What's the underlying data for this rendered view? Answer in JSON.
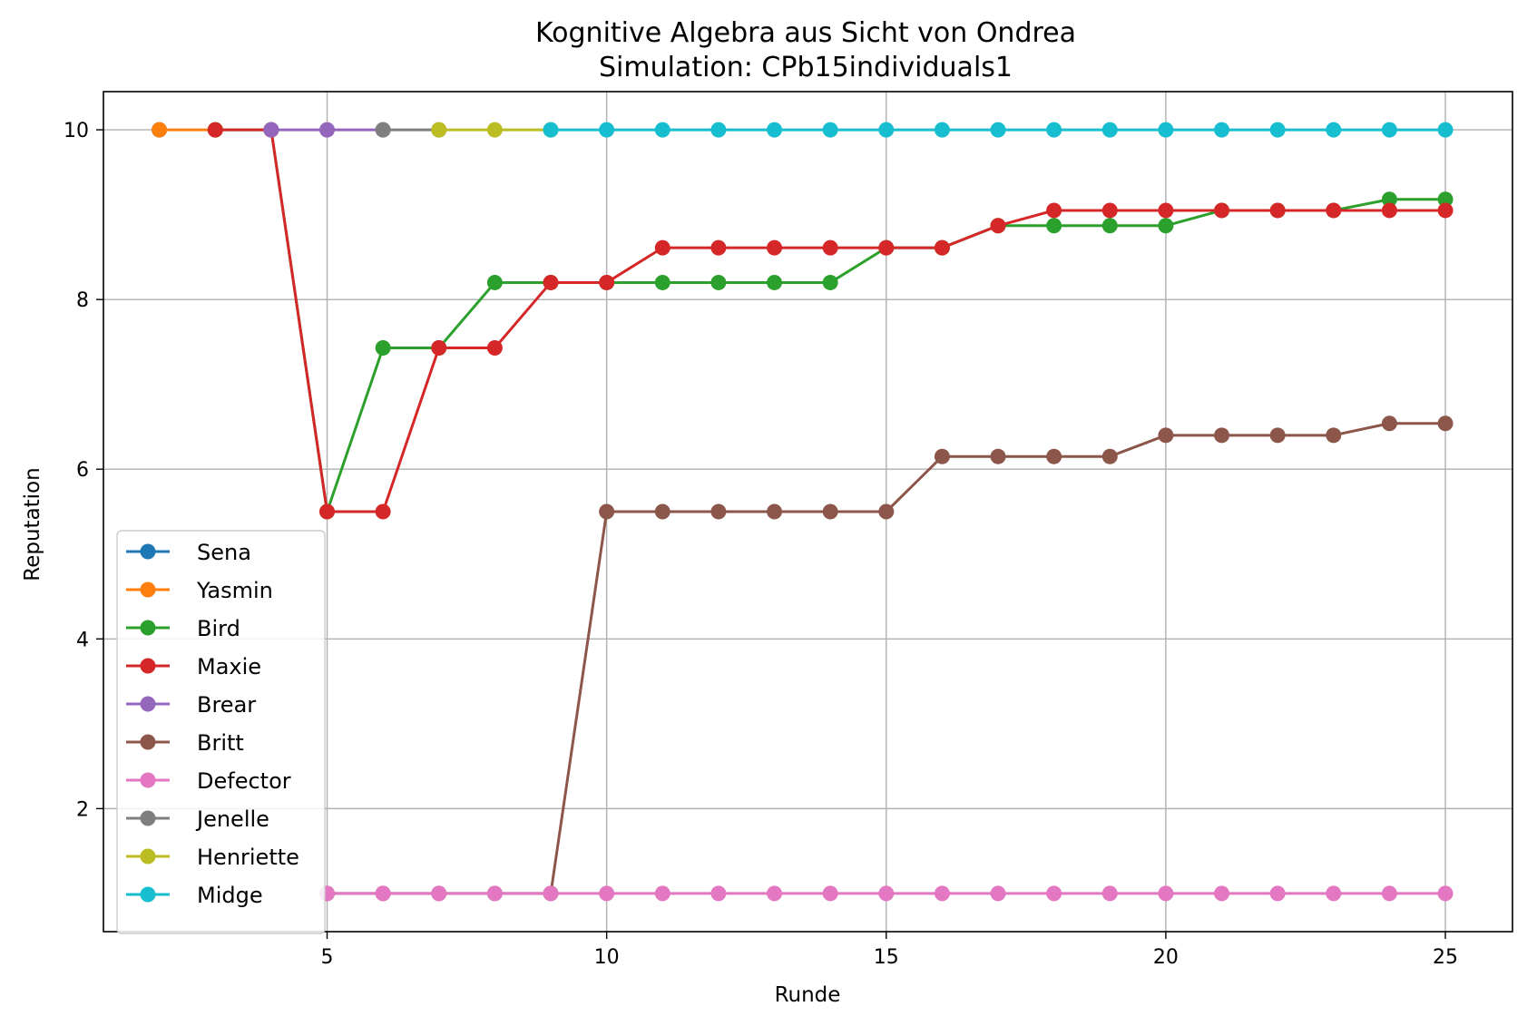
{
  "chart_data": {
    "type": "line",
    "title": "Kognitive Algebra aus Sicht von Ondrea",
    "subtitle": "Simulation: CPb15individuals1",
    "xlabel": "Runde",
    "ylabel": "Reputation",
    "xlim": [
      1.0,
      26.2
    ],
    "ylim": [
      0.55,
      10.45
    ],
    "xticks": [
      5,
      10,
      15,
      20,
      25
    ],
    "yticks": [
      2,
      4,
      6,
      8,
      10
    ],
    "grid": true,
    "legend_position": "lower-left",
    "series": [
      {
        "name": "Sena",
        "color": "#1f77b4",
        "x": [
          2
        ],
        "y": [
          10
        ]
      },
      {
        "name": "Yasmin",
        "color": "#ff7f0e",
        "x": [
          2,
          3
        ],
        "y": [
          10,
          10
        ]
      },
      {
        "name": "Bird",
        "color": "#2ca02c",
        "x": [
          3,
          4,
          5,
          6,
          7,
          8,
          9,
          10,
          11,
          12,
          13,
          14,
          15,
          16,
          17,
          18,
          19,
          20,
          21,
          22,
          23,
          24,
          25
        ],
        "y": [
          10,
          10,
          5.5,
          7.43,
          7.43,
          8.2,
          8.2,
          8.2,
          8.2,
          8.2,
          8.2,
          8.2,
          8.61,
          8.61,
          8.87,
          8.87,
          8.87,
          8.87,
          9.05,
          9.05,
          9.05,
          9.18,
          9.18
        ]
      },
      {
        "name": "Maxie",
        "color": "#d62728",
        "x": [
          3,
          4,
          5,
          6,
          7,
          8,
          9,
          10,
          11,
          12,
          13,
          14,
          15,
          16,
          17,
          18,
          19,
          20,
          21,
          22,
          23,
          24,
          25
        ],
        "y": [
          10,
          10,
          5.5,
          5.5,
          7.43,
          7.43,
          8.2,
          8.2,
          8.61,
          8.61,
          8.61,
          8.61,
          8.61,
          8.61,
          8.87,
          9.05,
          9.05,
          9.05,
          9.05,
          9.05,
          9.05,
          9.05,
          9.05
        ]
      },
      {
        "name": "Brear",
        "color": "#9467bd",
        "x": [
          4,
          5,
          6
        ],
        "y": [
          10,
          10,
          10
        ]
      },
      {
        "name": "Britt",
        "color": "#8c564b",
        "x": [
          5,
          6,
          7,
          8,
          9,
          10,
          11,
          12,
          13,
          14,
          15,
          16,
          17,
          18,
          19,
          20,
          21,
          22,
          23,
          24,
          25
        ],
        "y": [
          1,
          1,
          1,
          1,
          1,
          5.5,
          5.5,
          5.5,
          5.5,
          5.5,
          5.5,
          6.15,
          6.15,
          6.15,
          6.15,
          6.4,
          6.4,
          6.4,
          6.4,
          6.54,
          6.54
        ]
      },
      {
        "name": "Defector",
        "color": "#e377c2",
        "x": [
          5,
          6,
          7,
          8,
          9,
          10,
          11,
          12,
          13,
          14,
          15,
          16,
          17,
          18,
          19,
          20,
          21,
          22,
          23,
          24,
          25
        ],
        "y": [
          1,
          1,
          1,
          1,
          1,
          1,
          1,
          1,
          1,
          1,
          1,
          1,
          1,
          1,
          1,
          1,
          1,
          1,
          1,
          1,
          1
        ]
      },
      {
        "name": "Jenelle",
        "color": "#7f7f7f",
        "x": [
          6,
          7
        ],
        "y": [
          10,
          10
        ]
      },
      {
        "name": "Henriette",
        "color": "#bcbd22",
        "x": [
          7,
          8,
          9
        ],
        "y": [
          10,
          10,
          10
        ]
      },
      {
        "name": "Midge",
        "color": "#17becf",
        "x": [
          9,
          10,
          11,
          12,
          13,
          14,
          15,
          16,
          17,
          18,
          19,
          20,
          21,
          22,
          23,
          24,
          25
        ],
        "y": [
          10,
          10,
          10,
          10,
          10,
          10,
          10,
          10,
          10,
          10,
          10,
          10,
          10,
          10,
          10,
          10,
          10
        ]
      }
    ]
  }
}
